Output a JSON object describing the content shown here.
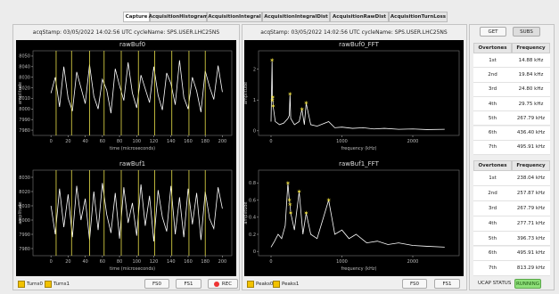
{
  "tabs": [
    "Capture",
    "AcquisitionHistogram",
    "AcquisitionIntegral",
    "AcquisitionIntegralDist",
    "AcquisitionRawDist",
    "AcquisitionTurnLoss"
  ],
  "left_panel": {
    "header": "acqStamp: 03/05/2022 14:02:56 UTC  cycleName: SPS.USER.LHC25NS",
    "plots": [
      {
        "type": "line",
        "title": "rawBuf0",
        "xlabel": "time (microseconds)",
        "ylabel": "amplitude",
        "xlim": [
          -21,
          211
        ],
        "ylim": [
          7975,
          8055
        ],
        "xticks": [
          0,
          20,
          40,
          60,
          80,
          100,
          120,
          140,
          160,
          180,
          200
        ],
        "yticks": [
          7980,
          7990,
          8000,
          8010,
          8020,
          8030,
          8040,
          8050
        ],
        "x": [
          0,
          5,
          10,
          15,
          20,
          25,
          30,
          35,
          40,
          45,
          50,
          55,
          60,
          65,
          70,
          75,
          80,
          85,
          90,
          95,
          100,
          105,
          110,
          115,
          120,
          125,
          130,
          135,
          140,
          145,
          150,
          155,
          160,
          165,
          170,
          175,
          180,
          185,
          190,
          195,
          200
        ],
        "values": [
          8015,
          8030,
          8002,
          8040,
          8010,
          7998,
          8035,
          8020,
          8005,
          8042,
          8012,
          8000,
          8028,
          8018,
          7996,
          8038,
          8022,
          8008,
          8044,
          8015,
          8001,
          8032,
          8019,
          8006,
          8040,
          8013,
          7999,
          8034,
          8024,
          8004,
          8046,
          8011,
          8000,
          8030,
          8017,
          7997,
          8036,
          8021,
          8009,
          8041,
          8016
        ],
        "marker_x": [
          6,
          24,
          45,
          62,
          82,
          102,
          121,
          141,
          161,
          180
        ]
      },
      {
        "type": "line",
        "title": "rawBuf1",
        "xlabel": "time (microseconds)",
        "ylabel": "amplitude",
        "xlim": [
          -21,
          211
        ],
        "ylim": [
          7975,
          8035
        ],
        "xticks": [
          0,
          20,
          40,
          60,
          80,
          100,
          120,
          140,
          160,
          180,
          200
        ],
        "yticks": [
          7980,
          7990,
          8000,
          8010,
          8020,
          8030
        ],
        "x": [
          0,
          5,
          10,
          15,
          20,
          25,
          30,
          35,
          40,
          45,
          50,
          55,
          60,
          65,
          70,
          75,
          80,
          85,
          90,
          95,
          100,
          105,
          110,
          115,
          120,
          125,
          130,
          135,
          140,
          145,
          150,
          155,
          160,
          165,
          170,
          175,
          180,
          185,
          190,
          195,
          200
        ],
        "values": [
          8010,
          7990,
          8022,
          7995,
          8018,
          7988,
          8024,
          8000,
          8015,
          7986,
          8020,
          7993,
          8026,
          8004,
          7991,
          8019,
          7987,
          8023,
          7998,
          8012,
          7989,
          8025,
          7996,
          8017,
          7985,
          8021,
          8002,
          7992,
          8024,
          7990,
          8016,
          7988,
          8022,
          7997,
          8019,
          7986,
          8020,
          8001,
          7994,
          8023,
          8008
        ],
        "marker_x": [
          6,
          24,
          45,
          62,
          82,
          102,
          121,
          141,
          161,
          180
        ]
      }
    ],
    "checkboxes": [
      "Turns0",
      "Turns1"
    ],
    "buttons": [
      "FS0",
      "FS1",
      "REC"
    ]
  },
  "middle_panel": {
    "header": "acqStamp: 03/05/2022 14:02:56 UTC  cycleName: SPS.USER.LHC25NS",
    "plots": [
      {
        "type": "line",
        "title": "rawBuf0_FFT",
        "xlabel": "frequency (kHz)",
        "ylabel": "amplitude",
        "xlim": [
          -176,
          2654
        ],
        "ylim": [
          -0.15,
          2.6
        ],
        "xticks": [
          0,
          1000,
          2000
        ],
        "yticks": [
          0,
          1,
          2
        ],
        "x": [
          0,
          15,
          20,
          25,
          30,
          60,
          120,
          180,
          238,
          258,
          268,
          278,
          330,
          397,
          436,
          470,
          496,
          560,
          650,
          813,
          900,
          1000,
          1150,
          1300,
          1450,
          1600,
          1800,
          2000,
          2200,
          2450
        ],
        "values": [
          0.3,
          2.3,
          1.0,
          1.1,
          0.8,
          0.3,
          0.2,
          0.25,
          0.4,
          0.5,
          1.2,
          0.4,
          0.2,
          0.3,
          0.7,
          0.2,
          0.9,
          0.2,
          0.15,
          0.3,
          0.1,
          0.12,
          0.08,
          0.1,
          0.06,
          0.08,
          0.05,
          0.06,
          0.04,
          0.05
        ],
        "peaks_x": [
          15,
          20,
          25,
          30,
          268,
          436,
          496
        ],
        "peaks_y": [
          2.3,
          1.0,
          1.1,
          0.8,
          1.2,
          0.7,
          0.9
        ]
      },
      {
        "type": "line",
        "title": "rawBuf1_FFT",
        "xlabel": "frequency (kHz)",
        "ylabel": "amplitude",
        "xlim": [
          -176,
          2654
        ],
        "ylim": [
          -0.05,
          0.95
        ],
        "xticks": [
          0,
          1000,
          2000
        ],
        "yticks": [
          0,
          0.2,
          0.4,
          0.6,
          0.8
        ],
        "x": [
          0,
          50,
          100,
          150,
          200,
          238,
          258,
          268,
          278,
          330,
          397,
          450,
          496,
          560,
          650,
          813,
          900,
          1000,
          1100,
          1200,
          1350,
          1500,
          1650,
          1800,
          2000,
          2200,
          2450
        ],
        "values": [
          0.05,
          0.12,
          0.2,
          0.15,
          0.3,
          0.8,
          0.6,
          0.55,
          0.45,
          0.25,
          0.7,
          0.2,
          0.45,
          0.2,
          0.15,
          0.6,
          0.2,
          0.25,
          0.15,
          0.2,
          0.1,
          0.12,
          0.08,
          0.1,
          0.07,
          0.06,
          0.05
        ],
        "peaks_x": [
          238,
          258,
          268,
          278,
          397,
          496,
          813
        ],
        "peaks_y": [
          0.8,
          0.6,
          0.55,
          0.45,
          0.7,
          0.45,
          0.6
        ]
      }
    ],
    "checkboxes": [
      "Peaks0",
      "Peaks1"
    ],
    "buttons": [
      "FS0",
      "FS1"
    ]
  },
  "right_panel": {
    "buttons": [
      "GET",
      "SUBS"
    ],
    "tables": [
      {
        "columns": [
          "Overtones",
          "Frequency"
        ],
        "rows": [
          [
            "1st",
            "14.88 kHz"
          ],
          [
            "2nd",
            "19.84 kHz"
          ],
          [
            "3rd",
            "24.80 kHz"
          ],
          [
            "4th",
            "29.75 kHz"
          ],
          [
            "5th",
            "267.79 kHz"
          ],
          [
            "6th",
            "436.40 kHz"
          ],
          [
            "7th",
            "495.91 kHz"
          ]
        ]
      },
      {
        "columns": [
          "Overtones",
          "Frequency"
        ],
        "rows": [
          [
            "1st",
            "238.04 kHz"
          ],
          [
            "2nd",
            "257.87 kHz"
          ],
          [
            "3rd",
            "267.79 kHz"
          ],
          [
            "4th",
            "277.71 kHz"
          ],
          [
            "5th",
            "396.73 kHz"
          ],
          [
            "6th",
            "495.91 kHz"
          ],
          [
            "7th",
            "813.29 kHz"
          ]
        ]
      }
    ],
    "status_label": "UCAP STATUS",
    "status": "RUNNING"
  }
}
